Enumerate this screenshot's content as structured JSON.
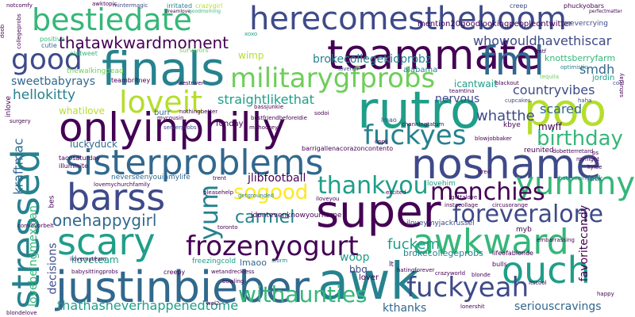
{
  "palette": {
    "dark_purple": "#440154",
    "indigo": "#3e4a89",
    "blue": "#31688e",
    "teal": "#26828e",
    "green_teal": "#1f9e89",
    "green": "#35b779",
    "light_green": "#6ece58",
    "lime": "#b5de2b",
    "yellow": "#fde725"
  },
  "words": {
    "herecomestheboom": "herecomestheboom",
    "bestiedate": "bestiedate",
    "finals": "finals",
    "teammate": "teammate",
    "fml": "fml",
    "good": "good",
    "militarygfprobs": "militarygfprobs",
    "poo": "poo",
    "rutro": "rutro",
    "loveit": "loveit",
    "onlyinphilly": "onlyinphilly",
    "fuckyes": "fuckyes",
    "noshame": "noshame",
    "sisterproblems": "sisterproblems",
    "yummy": "yummy",
    "birthday": "birthday",
    "barss": "barss",
    "sogood": "sogood",
    "thankyou": "thankyou",
    "menchies": "menchies",
    "super": "super",
    "foreveralone": "foreveralone",
    "stressed": "stressed",
    "scary": "scary",
    "yum": "yum",
    "awkward": "awkward",
    "frozenyogurt": "frozenyogurt",
    "ouch": "ouch",
    "justinbieber": "justinbieber",
    "awk": "awk",
    "fuckyeah": "fuckyeah",
    "carmel": "carmel",
    "onehappygirl": "onehappygirl",
    "withaunties": "withaunties",
    "thatawkwardmoment": "thatawkwardmoment",
    "brokecollegekidprobz": "brokecollegekidprobz",
    "whowouldhavethiscar": "whowouldhavethiscar",
    "smdh": "smdh",
    "knottsberryfarm": "knottsberryfarm",
    "countryvibes": "countryvibes",
    "straightlikethat": "straightlikethat",
    "hellokitty": "hellokitty",
    "sweetbabyrays": "sweetbabyrays",
    "whatthe": "whatthe",
    "nervous": "nervous",
    "scared": "scared",
    "whatilove": "whatilove",
    "luckyduck": "luckyduck",
    "kraftmac": "kraftmac",
    "jlibfootball": "jlibfootball",
    "favoritecandy": "favoritecandy",
    "fuckem": "fuckem",
    "woop": "woop",
    "bbq": "bbq",
    "lovebeingmexican": "lovebeingmexican",
    "decisions": "decisions",
    "thathasneverhappenedtome": "thathasneverhappenedtome",
    "kthanks": "kthanks",
    "seriouscravings": "seriouscravings",
    "brokecollegeprobs": "brokecollegeprobs",
    "lmaoo": "lmaoo",
    "iloveteam": "iloveteam",
    "mention20goodlookingpeopleontwitter": "mention20goodlookingpeopleontwitter",
    "forevercrying": "forevercrying",
    "phuckyobars": "phuckyobars",
    "creep": "creep",
    "crazygirl": "crazygirl",
    "irritated": "irritated",
    "mintermagic": "mintermagic",
    "awktopic": "awktopic",
    "xoxo": "xoxo",
    "dreamlove": "dreamlove",
    "goodmorning": "goodmorning",
    "positive": "positive",
    "cutie": "cutie",
    "oldtweet": "oldtweet",
    "survivors": "survivors",
    "notcomfy": "notcomfy",
    "thewalkingdead": "thewalkingdead",
    "wimp": "wimp",
    "alabama": "alabama",
    "teambritney": "teambritney",
    "westriver": "westriver",
    "loveher": "loveher",
    "mtf": "mtf",
    "optimistic": "optimistic",
    "tequila": "tequila",
    "jordin": "jordin",
    "cool": "cool",
    "icantwait": "icantwait",
    "blackout": "blackout",
    "cupcakes": "cupcakes",
    "burr": "burr",
    "nothingbetter": "nothingbetter",
    "bassjunkie": "bassjunkie",
    "lmao": "lmao",
    "haha": "haha",
    "kbye": "kbye",
    "mwff": "mwff",
    "mycousin": "mycousin",
    "bestfriendbeforeIdie": "bestfriendbeforeIdie",
    "funday": "funday",
    "muhockey": "muhockey",
    "serverprobs": "serverprobs",
    "tacosaturday": "tacosaturday",
    "illuminite": "illuminite",
    "channingtatum": "channingtatum",
    "reunited": "reunited",
    "neverseenyouinmylife": "neverseenyouinmylife",
    "getgrounded": "getgrounded",
    "trent": "trent",
    "lovemychurchfamily": "lovemychurchfamily",
    "lovehim": "lovehim",
    "fuck": "fuck",
    "hateseeingsick": "hateseeingsick",
    "dobetterretard": "dobetterretard",
    "mynight": "mynight",
    "kylee": "kylee",
    "gottalove": "gottalove",
    "instacollage": "instacollage",
    "circusorange": "circusorange",
    "pleasehelp": "pleasehelp",
    "excited": "excited",
    "iloveyou": "iloveyou",
    "idontevenknowyourname": "idontevenknowyourname",
    "conveyorbelt": "conveyorbelt",
    "toronto": "toronto",
    "iloveymyjackrussel": "iloveymyjackrussel",
    "myb": "myb",
    "freezingcold": "freezingcold",
    "storm": "storm",
    "lt": "lt",
    "lifeofablonde": "lifeofablonde",
    "bulls": "bulls",
    "embarrassing": "embarrassing",
    "babysittingprobs": "babysittingprobs",
    "creepy": "creepy",
    "wetandreckless": "wetandreckless",
    "hatingforever": "hatingforever",
    "crazyworld": "crazyworld",
    "blonde": "blonde",
    "lover": "lover",
    "itscool": "itscool",
    "bowling": "bowling",
    "blondelove": "blondelove",
    "lonershit": "lonershit",
    "happy": "happy",
    "saturday": "saturday",
    "inlove": "inlove",
    "surgery": "surgery",
    "ilovemyteam": "ilovemyteam",
    "perfectmatter": "perfectmatter",
    "doob": "doob",
    "collegeprobs": "collegeprobs",
    "opps": "opps",
    "sodoi": "sodoi",
    "teamtina": "teamtina",
    "barrigallenacorazoncontento": "barrigallenacorazoncontento",
    "blowjobbaker": "blowjobbaker",
    "tired": "tired",
    "bes": "bes",
    "ps": "ps",
    "wel2": "wel2"
  }
}
